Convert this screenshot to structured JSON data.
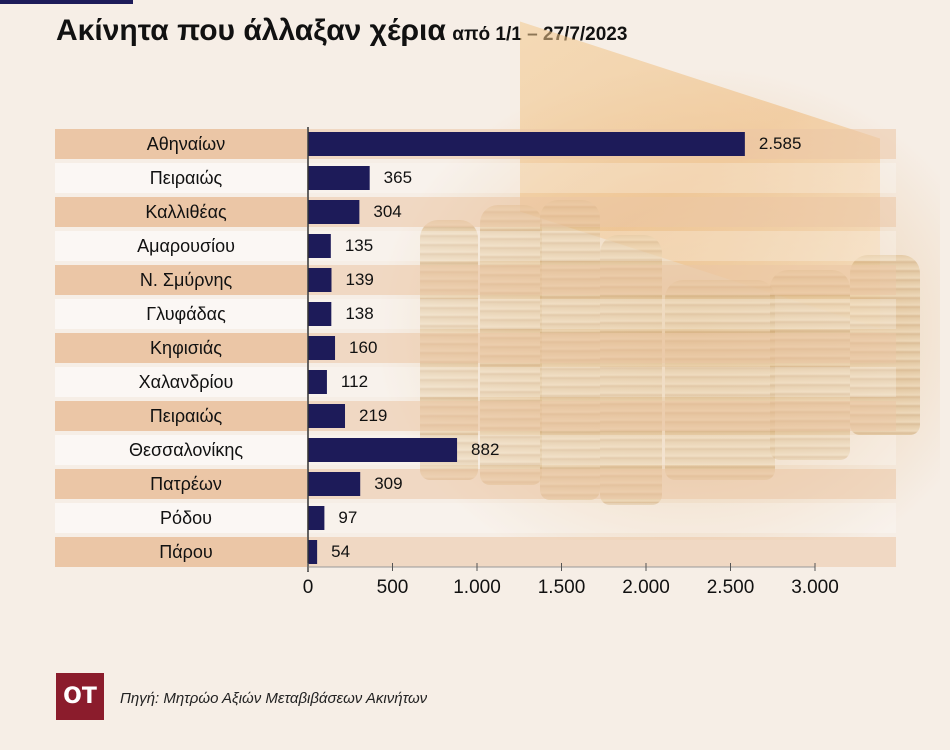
{
  "title": "Ακίνητα που άλλαξαν χέρια",
  "subtitle": "από 1/1 – 27/7/2023",
  "source": "Πηγή: Μητρώο Αξιών Μεταβιβάσεων Ακινήτων",
  "logo": "OT",
  "colors": {
    "bar": "#1d1b59",
    "band": "#ebc6a6",
    "band_light": "rgba(255,255,255,0.55)",
    "logo_bg": "#8b1c2c"
  },
  "chart_data": {
    "type": "bar",
    "orientation": "horizontal",
    "categories": [
      "Αθηναίων",
      "Πειραιώς",
      "Καλλιθέας",
      "Αμαρουσίου",
      "Ν. Σμύρνης",
      "Γλυφάδας",
      "Κηφισιάς",
      "Χαλανδρίου",
      "Πειραιώς",
      "Θεσσαλονίκης",
      "Πατρέων",
      "Ρόδου",
      "Πάρου"
    ],
    "values": [
      2585,
      365,
      304,
      135,
      139,
      138,
      160,
      112,
      219,
      882,
      309,
      97,
      54
    ],
    "value_labels": [
      "2.585",
      "365",
      "304",
      "135",
      "139",
      "138",
      "160",
      "112",
      "219",
      "882",
      "309",
      "97",
      "54"
    ],
    "xlim": [
      0,
      3000
    ],
    "xticks": [
      0,
      500,
      1000,
      1500,
      2000,
      2500,
      3000
    ],
    "xtick_labels": [
      "0",
      "500",
      "1.000",
      "1.500",
      "2.000",
      "2.500",
      "3.000"
    ],
    "grid": false,
    "legend": "none"
  }
}
